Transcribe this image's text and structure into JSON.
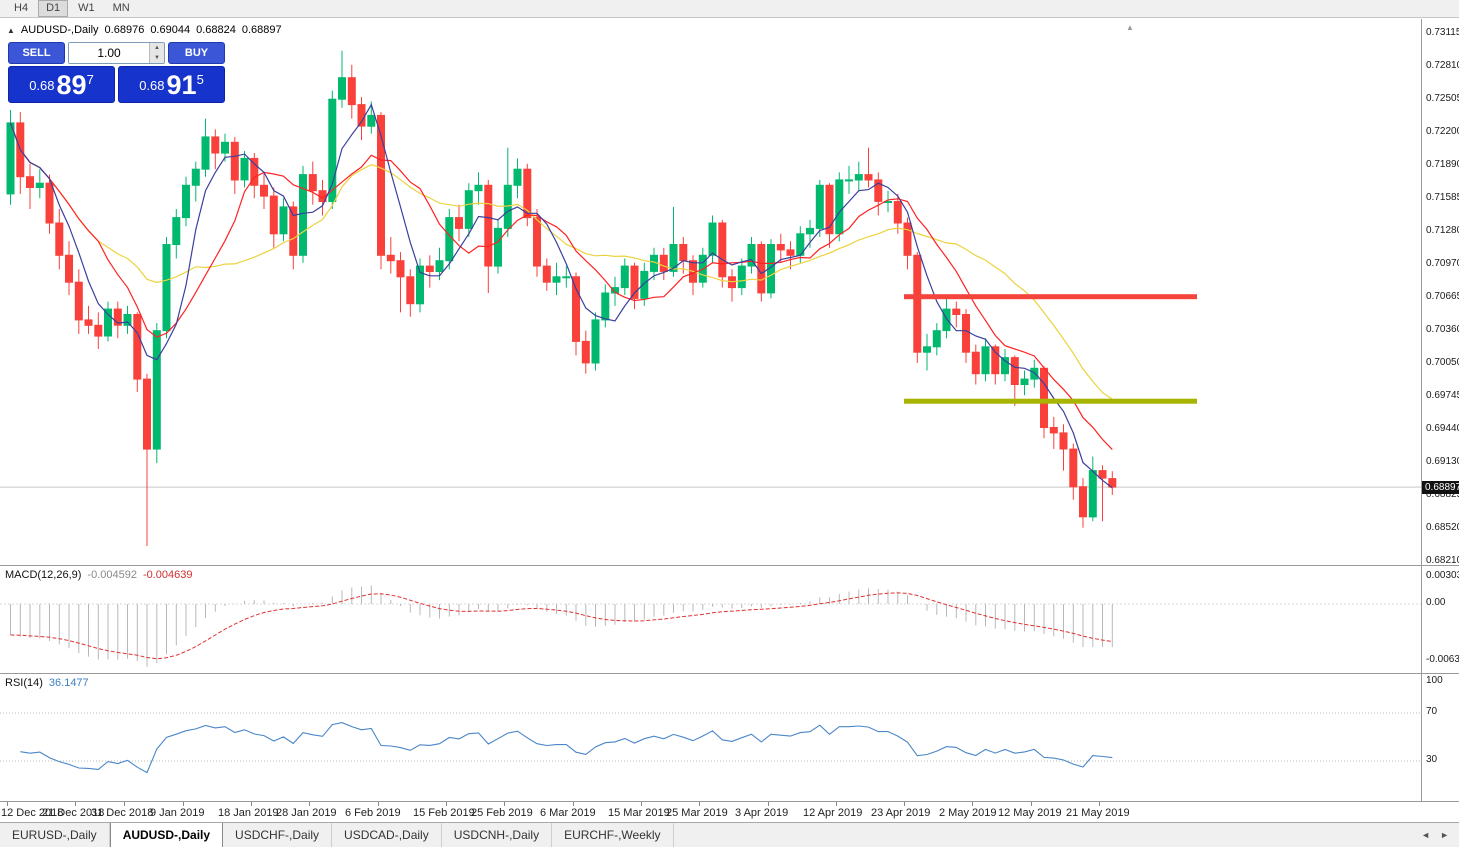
{
  "toolbar": {
    "periods": [
      {
        "label": "H4",
        "active": false
      },
      {
        "label": "D1",
        "active": true
      },
      {
        "label": "W1",
        "active": false
      },
      {
        "label": "MN",
        "active": false
      }
    ]
  },
  "icons": {
    "shift_marker": "▲"
  },
  "chart_header": {
    "marker": "▲",
    "symbol": "AUDUSD-,Daily",
    "open": "0.68976",
    "high": "0.69044",
    "low": "0.68824",
    "close": "0.68897"
  },
  "trade_panel": {
    "sell_label": "SELL",
    "buy_label": "BUY",
    "volume": "1.00",
    "spinner_up": "▲",
    "spinner_down": "▼",
    "sell_price": {
      "prefix": "0.68",
      "big": "89",
      "sup": "7"
    },
    "buy_price": {
      "prefix": "0.68",
      "big": "91",
      "sup": "5"
    }
  },
  "price_axis": {
    "labels": [
      "0.73115",
      "0.72810",
      "0.72505",
      "0.72200",
      "0.71890",
      "0.71585",
      "0.71280",
      "0.70970",
      "0.70665",
      "0.70360",
      "0.70050",
      "0.69745",
      "0.69440",
      "0.69130",
      "0.68825",
      "0.68520",
      "0.68210"
    ],
    "current": "0.68897"
  },
  "macd_panel": {
    "label": "MACD(12,26,9)",
    "main_value": "-0.004592",
    "signal_value": "-0.004639",
    "axis": [
      "0.003035",
      "0.00",
      "-0.00631"
    ]
  },
  "rsi_panel": {
    "label": "RSI(14)",
    "value": "36.1477",
    "axis": [
      "100",
      "70",
      "30"
    ]
  },
  "date_axis": {
    "ticks": [
      {
        "label": "12 Dec 2018",
        "i": 0
      },
      {
        "label": "21 Dec 2018",
        "i": 7
      },
      {
        "label": "31 Dec 2018",
        "i": 12
      },
      {
        "label": "9 Jan 2019",
        "i": 18
      },
      {
        "label": "18 Jan 2019",
        "i": 25
      },
      {
        "label": "28 Jan 2019",
        "i": 31
      },
      {
        "label": "6 Feb 2019",
        "i": 38
      },
      {
        "label": "15 Feb 2019",
        "i": 45
      },
      {
        "label": "25 Feb 2019",
        "i": 51
      },
      {
        "label": "6 Mar 2019",
        "i": 58
      },
      {
        "label": "15 Mar 2019",
        "i": 65
      },
      {
        "label": "25 Mar 2019",
        "i": 71
      },
      {
        "label": "3 Apr 2019",
        "i": 78
      },
      {
        "label": "12 Apr 2019",
        "i": 85
      },
      {
        "label": "23 Apr 2019",
        "i": 92
      },
      {
        "label": "2 May 2019",
        "i": 99
      },
      {
        "label": "12 May 2019",
        "i": 105
      },
      {
        "label": "21 May 2019",
        "i": 112
      }
    ]
  },
  "bottom_tabs": {
    "tabs": [
      {
        "label": "EURUSD-,Daily",
        "active": false
      },
      {
        "label": "AUDUSD-,Daily",
        "active": true
      },
      {
        "label": "USDCHF-,Daily",
        "active": false
      },
      {
        "label": "USDCAD-,Daily",
        "active": false
      },
      {
        "label": "USDCNH-,Daily",
        "active": false
      },
      {
        "label": "EURCHF-,Weekly",
        "active": false
      }
    ],
    "nav_left": "◄",
    "nav_right": "►"
  },
  "chart_data": {
    "type": "candlestick",
    "symbol": "AUDUSD",
    "timeframe": "Daily",
    "title": "AUDUSD-,Daily",
    "last_ohlc": {
      "open": 0.68976,
      "high": 0.69044,
      "low": 0.68824,
      "close": 0.68897
    },
    "price_axis_range": [
      0.6821,
      0.73115
    ],
    "candles": [
      [
        0.7162,
        0.724,
        0.7152,
        0.7228
      ],
      [
        0.7228,
        0.7238,
        0.7162,
        0.7178
      ],
      [
        0.7178,
        0.719,
        0.7148,
        0.7168
      ],
      [
        0.7168,
        0.7185,
        0.7158,
        0.7172
      ],
      [
        0.7172,
        0.718,
        0.7125,
        0.7135
      ],
      [
        0.7135,
        0.7148,
        0.7092,
        0.7105
      ],
      [
        0.7105,
        0.7118,
        0.7068,
        0.708
      ],
      [
        0.708,
        0.7092,
        0.7032,
        0.7045
      ],
      [
        0.7045,
        0.7058,
        0.7032,
        0.704
      ],
      [
        0.704,
        0.7052,
        0.7018,
        0.703
      ],
      [
        0.703,
        0.7062,
        0.7025,
        0.7055
      ],
      [
        0.7055,
        0.7062,
        0.7028,
        0.704
      ],
      [
        0.704,
        0.7058,
        0.7032,
        0.705
      ],
      [
        0.705,
        0.7052,
        0.6978,
        0.699
      ],
      [
        0.699,
        0.6995,
        0.6835,
        0.6925
      ],
      [
        0.6925,
        0.7042,
        0.6912,
        0.7035
      ],
      [
        0.7035,
        0.7122,
        0.7028,
        0.7115
      ],
      [
        0.7115,
        0.7148,
        0.7102,
        0.714
      ],
      [
        0.714,
        0.7178,
        0.7132,
        0.717
      ],
      [
        0.717,
        0.7192,
        0.7155,
        0.7185
      ],
      [
        0.7185,
        0.7232,
        0.7178,
        0.7215
      ],
      [
        0.7215,
        0.7222,
        0.7185,
        0.72
      ],
      [
        0.72,
        0.7218,
        0.7192,
        0.721
      ],
      [
        0.721,
        0.7215,
        0.7162,
        0.7175
      ],
      [
        0.7175,
        0.7202,
        0.7168,
        0.7195
      ],
      [
        0.7195,
        0.72,
        0.7158,
        0.717
      ],
      [
        0.717,
        0.7182,
        0.7148,
        0.716
      ],
      [
        0.716,
        0.7168,
        0.7112,
        0.7125
      ],
      [
        0.7125,
        0.7158,
        0.7118,
        0.715
      ],
      [
        0.715,
        0.7155,
        0.7092,
        0.7105
      ],
      [
        0.7105,
        0.7188,
        0.7098,
        0.718
      ],
      [
        0.718,
        0.7192,
        0.7152,
        0.7165
      ],
      [
        0.7165,
        0.7175,
        0.7142,
        0.7155
      ],
      [
        0.7155,
        0.7258,
        0.7148,
        0.725
      ],
      [
        0.725,
        0.7295,
        0.7242,
        0.727
      ],
      [
        0.727,
        0.7282,
        0.7232,
        0.7245
      ],
      [
        0.7245,
        0.7252,
        0.7212,
        0.7225
      ],
      [
        0.7225,
        0.7248,
        0.7218,
        0.7235
      ],
      [
        0.7235,
        0.7238,
        0.7092,
        0.7105
      ],
      [
        0.7105,
        0.7122,
        0.7088,
        0.71
      ],
      [
        0.71,
        0.7108,
        0.7052,
        0.7085
      ],
      [
        0.7085,
        0.7092,
        0.7048,
        0.706
      ],
      [
        0.706,
        0.7102,
        0.7052,
        0.7095
      ],
      [
        0.7095,
        0.7105,
        0.7075,
        0.709
      ],
      [
        0.709,
        0.7112,
        0.7082,
        0.71
      ],
      [
        0.71,
        0.7148,
        0.7092,
        0.714
      ],
      [
        0.714,
        0.7152,
        0.7118,
        0.713
      ],
      [
        0.713,
        0.7172,
        0.7122,
        0.7165
      ],
      [
        0.7165,
        0.7182,
        0.7152,
        0.717
      ],
      [
        0.717,
        0.7175,
        0.707,
        0.7095
      ],
      [
        0.7095,
        0.7138,
        0.7088,
        0.713
      ],
      [
        0.713,
        0.7205,
        0.7122,
        0.717
      ],
      [
        0.717,
        0.7195,
        0.7158,
        0.7185
      ],
      [
        0.7185,
        0.719,
        0.7132,
        0.714
      ],
      [
        0.714,
        0.7148,
        0.7085,
        0.7095
      ],
      [
        0.7095,
        0.7102,
        0.7072,
        0.708
      ],
      [
        0.708,
        0.7098,
        0.7068,
        0.7085
      ],
      [
        0.7085,
        0.7095,
        0.7075,
        0.7085
      ],
      [
        0.7085,
        0.7089,
        0.7012,
        0.7025
      ],
      [
        0.7025,
        0.7035,
        0.6995,
        0.7005
      ],
      [
        0.7005,
        0.7052,
        0.6998,
        0.7045
      ],
      [
        0.7045,
        0.7078,
        0.7038,
        0.707
      ],
      [
        0.707,
        0.7085,
        0.7058,
        0.7075
      ],
      [
        0.7075,
        0.7102,
        0.7068,
        0.7095
      ],
      [
        0.7095,
        0.7098,
        0.7055,
        0.7065
      ],
      [
        0.7065,
        0.7098,
        0.7058,
        0.709
      ],
      [
        0.709,
        0.7112,
        0.7082,
        0.7105
      ],
      [
        0.7105,
        0.7112,
        0.7082,
        0.709
      ],
      [
        0.709,
        0.715,
        0.7085,
        0.7115
      ],
      [
        0.7115,
        0.7122,
        0.7088,
        0.71
      ],
      [
        0.71,
        0.7105,
        0.7068,
        0.708
      ],
      [
        0.708,
        0.7112,
        0.7075,
        0.7105
      ],
      [
        0.7105,
        0.7142,
        0.7098,
        0.7135
      ],
      [
        0.7135,
        0.7138,
        0.7075,
        0.7085
      ],
      [
        0.7085,
        0.7092,
        0.7062,
        0.7075
      ],
      [
        0.7075,
        0.7102,
        0.7068,
        0.7095
      ],
      [
        0.7095,
        0.7122,
        0.7088,
        0.7115
      ],
      [
        0.7115,
        0.7118,
        0.7062,
        0.707
      ],
      [
        0.707,
        0.712,
        0.7065,
        0.7115
      ],
      [
        0.7115,
        0.7125,
        0.7098,
        0.711
      ],
      [
        0.711,
        0.7118,
        0.7092,
        0.7105
      ],
      [
        0.7105,
        0.7132,
        0.7098,
        0.7125
      ],
      [
        0.7125,
        0.7138,
        0.7112,
        0.713
      ],
      [
        0.713,
        0.7175,
        0.7122,
        0.717
      ],
      [
        0.717,
        0.7172,
        0.7112,
        0.7125
      ],
      [
        0.7125,
        0.7182,
        0.7118,
        0.7175
      ],
      [
        0.7175,
        0.7188,
        0.7162,
        0.7175
      ],
      [
        0.7175,
        0.7192,
        0.7165,
        0.718
      ],
      [
        0.718,
        0.7205,
        0.7168,
        0.7175
      ],
      [
        0.7175,
        0.7182,
        0.7142,
        0.7155
      ],
      [
        0.7155,
        0.7165,
        0.7145,
        0.7155
      ],
      [
        0.7155,
        0.7162,
        0.7125,
        0.7135
      ],
      [
        0.7135,
        0.714,
        0.7092,
        0.7105
      ],
      [
        0.7105,
        0.7108,
        0.7005,
        0.7015
      ],
      [
        0.7015,
        0.7032,
        0.6998,
        0.702
      ],
      [
        0.702,
        0.7042,
        0.7012,
        0.7035
      ],
      [
        0.7035,
        0.7065,
        0.7028,
        0.7055
      ],
      [
        0.7055,
        0.7062,
        0.7038,
        0.705
      ],
      [
        0.705,
        0.7055,
        0.7005,
        0.7015
      ],
      [
        0.7015,
        0.7022,
        0.6985,
        0.6995
      ],
      [
        0.6995,
        0.7028,
        0.6988,
        0.702
      ],
      [
        0.702,
        0.7022,
        0.6985,
        0.6995
      ],
      [
        0.6995,
        0.7018,
        0.6988,
        0.701
      ],
      [
        0.701,
        0.7012,
        0.6965,
        0.6985
      ],
      [
        0.6985,
        0.6998,
        0.6975,
        0.699
      ],
      [
        0.699,
        0.7008,
        0.6982,
        0.7
      ],
      [
        0.7,
        0.7002,
        0.6935,
        0.6945
      ],
      [
        0.6945,
        0.6955,
        0.6925,
        0.694
      ],
      [
        0.694,
        0.6948,
        0.6905,
        0.6925
      ],
      [
        0.6925,
        0.693,
        0.6878,
        0.689
      ],
      [
        0.689,
        0.6898,
        0.6852,
        0.6862
      ],
      [
        0.6862,
        0.6918,
        0.6858,
        0.6905
      ],
      [
        0.6905,
        0.691,
        0.6858,
        0.6898
      ],
      [
        0.68976,
        0.69044,
        0.68824,
        0.68897
      ]
    ],
    "colors": {
      "up": "#00b96e",
      "down": "#f9403a",
      "ma_fast": "#3a3f9e",
      "ma_mid": "#ff2222",
      "ma_slow": "#ecd23e",
      "macd_hist": "#b8b8b8",
      "macd_signal": "#e03232",
      "rsi_line": "#4a86c8",
      "resistance": "#f4443c",
      "support": "#a7b400",
      "current_price_line": "#c8c8c8"
    },
    "moving_averages": [
      {
        "name": "fast",
        "type": "sma",
        "period": 5
      },
      {
        "name": "mid",
        "type": "sma",
        "period": 10
      },
      {
        "name": "slow",
        "type": "sma",
        "period": 20
      }
    ],
    "levels": [
      {
        "name": "resistance",
        "price": 0.70665,
        "from_index": 92,
        "to_index": 122
      },
      {
        "name": "support",
        "price": 0.69695,
        "from_index": 92,
        "to_index": 122
      }
    ],
    "indicators": {
      "macd": {
        "fast": 12,
        "slow": 26,
        "signal": 9,
        "last_main": -0.004592,
        "last_signal": -0.004639,
        "axis_max": 0.003035,
        "axis_min": -0.00631
      },
      "rsi": {
        "period": 14,
        "last": 36.1477,
        "levels": [
          70,
          30
        ]
      }
    }
  }
}
